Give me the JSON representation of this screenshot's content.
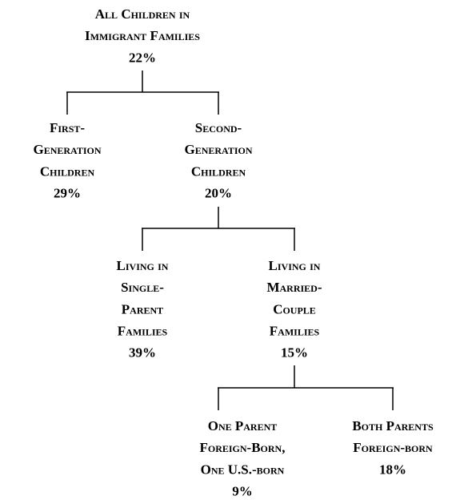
{
  "nodes": [
    {
      "lines": [
        "All Children in",
        "Immigrant Families"
      ],
      "percent": "22%"
    },
    {
      "lines": [
        "First-",
        "Generation",
        "Children"
      ],
      "percent": "29%"
    },
    {
      "lines": [
        "Second-",
        "Generation",
        "Children"
      ],
      "percent": "20%"
    },
    {
      "lines": [
        "Living in",
        "Single-",
        "Parent",
        "Families"
      ],
      "percent": "39%"
    },
    {
      "lines": [
        "Living in",
        "Married-",
        "Couple",
        "Families"
      ],
      "percent": "15%"
    },
    {
      "lines": [
        "One Parent",
        "Foreign-Born,",
        "One U.S.-born"
      ],
      "percent": "9%"
    },
    {
      "lines": [
        "Both Parents",
        "Foreign-born"
      ],
      "percent": "18%"
    }
  ]
}
